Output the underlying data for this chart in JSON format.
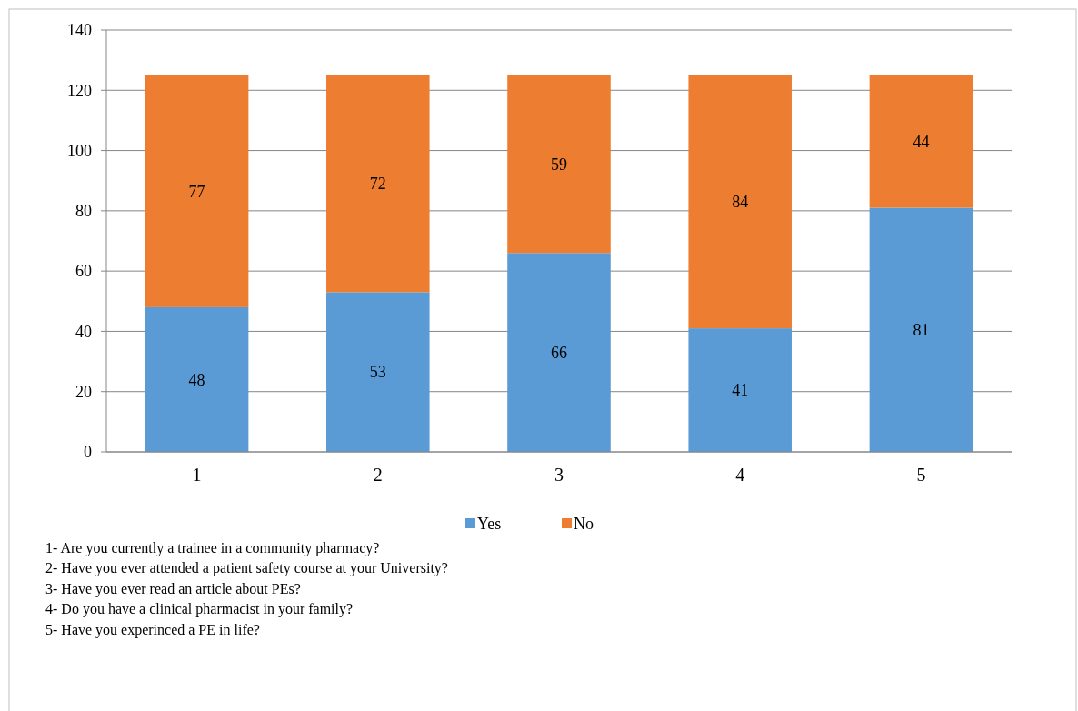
{
  "chart_data": {
    "type": "bar",
    "stacked": true,
    "categories": [
      "1",
      "2",
      "3",
      "4",
      "5"
    ],
    "series": [
      {
        "name": "Yes",
        "color": "#5b9bd5",
        "values": [
          48,
          53,
          66,
          41,
          81
        ]
      },
      {
        "name": "No",
        "color": "#ed7d31",
        "values": [
          77,
          72,
          59,
          84,
          44
        ]
      }
    ],
    "ylim": [
      0,
      140
    ],
    "yticks": [
      0,
      20,
      40,
      60,
      80,
      100,
      120,
      140
    ],
    "grid": "y",
    "legend": "bottom",
    "data_labels": true,
    "annotations": [
      "1- Are you currently a trainee in a community pharmacy?",
      "2- Have you ever attended a patient safety course at your University?",
      "3- Have you ever read an article about PEs?",
      "4- Do you have a clinical pharmacist in your family?",
      "5- Have you experinced a PE in life?"
    ]
  }
}
